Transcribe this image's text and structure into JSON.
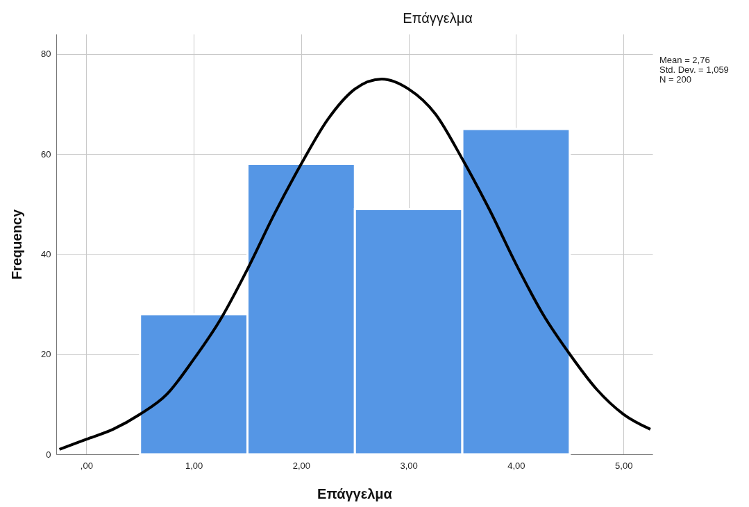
{
  "chart_data": {
    "type": "histogram",
    "title": "Επάγγελμα",
    "xlabel": "Επάγγελμα",
    "ylabel": "Frequency",
    "bins": [
      0.5,
      1.5,
      2.5,
      3.5,
      4.5
    ],
    "series": [
      {
        "color": "#5596e5",
        "values": [
          28,
          58,
          49,
          65
        ]
      },
      {
        "type": "line",
        "color": "#000000",
        "x": [
          -0.25,
          0,
          0.25,
          0.5,
          0.75,
          1,
          1.25,
          1.5,
          1.75,
          2,
          2.25,
          2.5,
          2.75,
          3,
          3.25,
          3.5,
          3.75,
          4,
          4.25,
          4.5,
          4.75,
          5,
          5.25
        ],
        "values": [
          1,
          3,
          5,
          8,
          12,
          19,
          27,
          37,
          48,
          58,
          67,
          73,
          75,
          73,
          68,
          59,
          49,
          38,
          28,
          20,
          13,
          8,
          5
        ]
      }
    ],
    "xlim": [
      -0.28,
      5.27
    ],
    "ylim": [
      0,
      84
    ],
    "xticks": [
      {
        "value": 0,
        "label": ",00"
      },
      {
        "value": 1,
        "label": "1,00"
      },
      {
        "value": 2,
        "label": "2,00"
      },
      {
        "value": 3,
        "label": "3,00"
      },
      {
        "value": 4,
        "label": "4,00"
      },
      {
        "value": 5,
        "label": "5,00"
      }
    ],
    "yticks": [
      0,
      20,
      40,
      60,
      80
    ],
    "grid": true,
    "annotations": [
      "Mean = 2,76",
      "Std. Dev. = 1,059",
      "N = 200"
    ]
  }
}
